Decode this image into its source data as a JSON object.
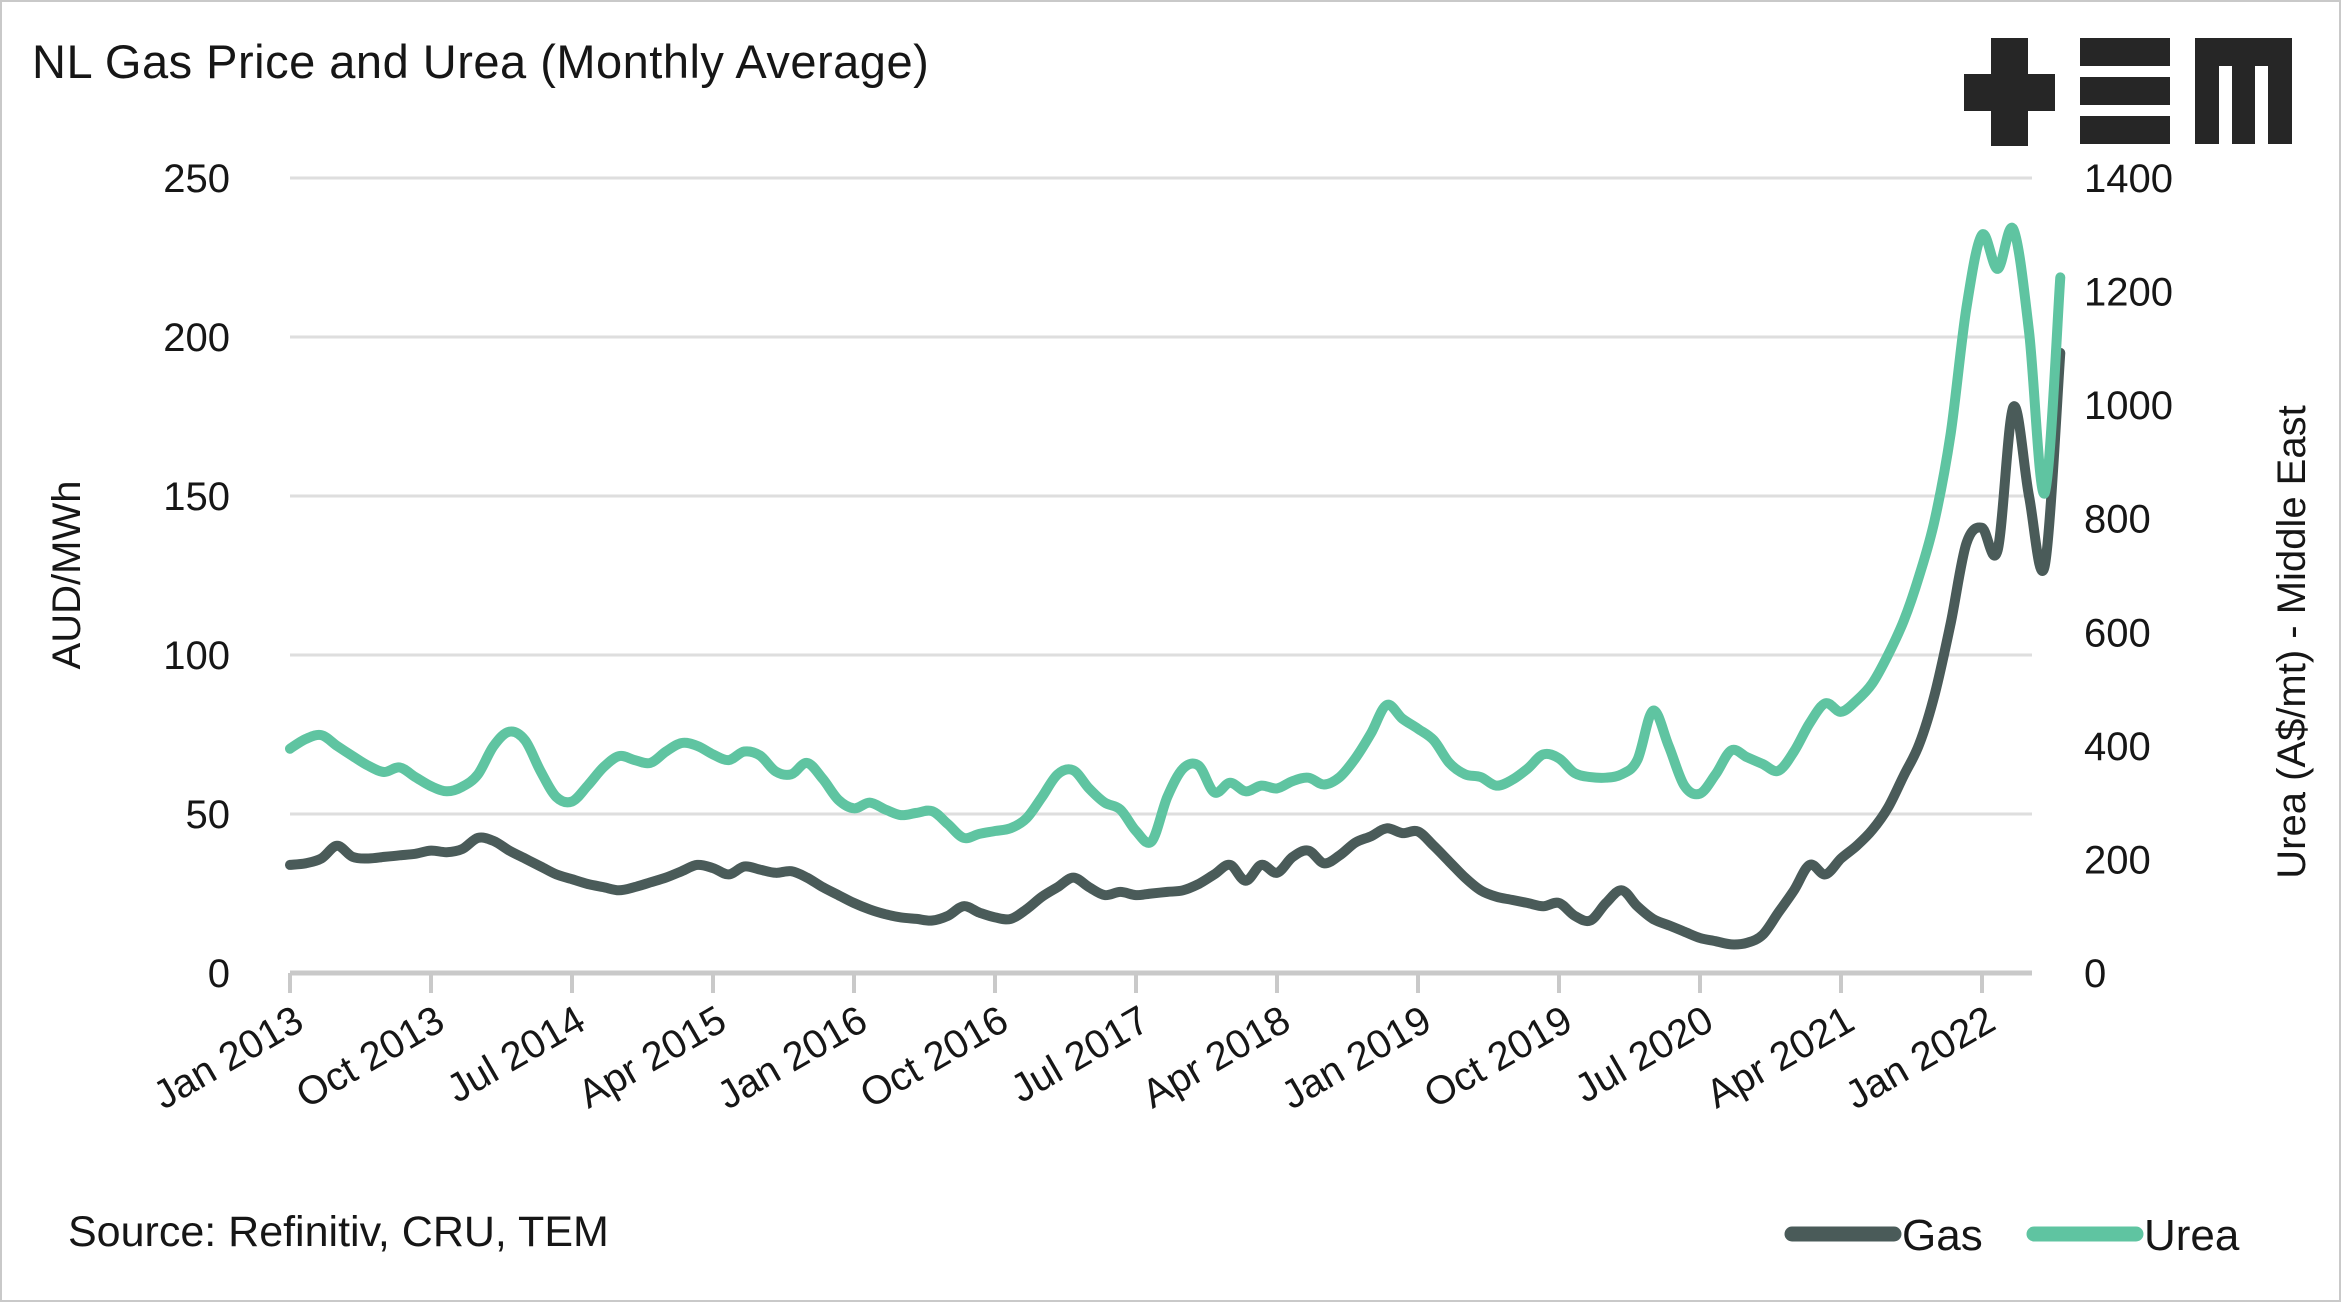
{
  "title": "NL Gas Price and Urea (Monthly Average)",
  "logo": {
    "text": "TEM"
  },
  "source": "Source: Refinitiv, CRU, TEM",
  "left_axis": {
    "title": "AUD/MWh",
    "ticks": [
      250,
      200,
      150,
      100,
      50,
      0
    ]
  },
  "right_axis": {
    "title": "Urea (A$/mt) - Middle East",
    "ticks": [
      1400,
      1200,
      1000,
      800,
      600,
      400,
      200,
      0
    ]
  },
  "x_axis": {
    "tick_labels": [
      "Jan 2013",
      "Oct 2013",
      "Jul 2014",
      "Apr 2015",
      "Jan 2016",
      "Oct 2016",
      "Jul 2017",
      "Apr 2018",
      "Jan 2019",
      "Oct 2019",
      "Jul 2020",
      "Apr 2021",
      "Jan 2022"
    ],
    "months_per_tick": 9
  },
  "legend": {
    "gas_label": "Gas",
    "urea_label": "Urea"
  },
  "colors": {
    "gas": "#4a5b59",
    "urea": "#5fc4a1",
    "grid": "#dedede",
    "axis": "#c9c9c9",
    "text": "#161616",
    "logo": "#262626"
  },
  "chart_data": {
    "type": "line",
    "x_start": "Jan 2013",
    "x_end": "Jun 2022",
    "frequency": "monthly",
    "left_ylabel": "AUD/MWh",
    "right_ylabel": "Urea (A$/mt) - Middle East",
    "left_ylim": [
      0,
      250
    ],
    "right_ylim": [
      0,
      1400
    ],
    "grid": true,
    "legend_position": "bottom-right",
    "series": [
      {
        "name": "Gas",
        "axis": "left",
        "unit": "AUD/MWh",
        "values": [
          34,
          34.5,
          36,
          40,
          36.5,
          36,
          36.5,
          37,
          37.5,
          38.5,
          38,
          39,
          42.5,
          41.5,
          38.5,
          36,
          33.5,
          31,
          29.5,
          28,
          27,
          26,
          27,
          28.5,
          30,
          32,
          34,
          33,
          31,
          33.5,
          32.5,
          31.5,
          32,
          30,
          27,
          24.5,
          22,
          20,
          18.5,
          17.5,
          17,
          16.5,
          18,
          21,
          19,
          17.5,
          17,
          20,
          24,
          27,
          30,
          27,
          24.5,
          25.5,
          24.5,
          25,
          25.5,
          26,
          28,
          31,
          34,
          29,
          34,
          31.5,
          36.5,
          38.5,
          34.5,
          37,
          41,
          43,
          45.5,
          44,
          44.5,
          40,
          35,
          30,
          26,
          24,
          23,
          22,
          21,
          22,
          18,
          16.5,
          22,
          26,
          21,
          17,
          15,
          13,
          11,
          10,
          9,
          9.5,
          12,
          19,
          26,
          34,
          31,
          36,
          40,
          45,
          52,
          62,
          72,
          88,
          110,
          135,
          140,
          133,
          178,
          150,
          128,
          195
        ]
      },
      {
        "name": "Urea",
        "axis": "right",
        "unit": "A$/mt",
        "values": [
          395,
          412,
          419,
          400,
          382,
          365,
          354,
          362,
          345,
          329,
          320,
          328,
          350,
          400,
          425,
          410,
          355,
          310,
          302,
          330,
          362,
          382,
          375,
          370,
          390,
          405,
          400,
          385,
          375,
          390,
          383,
          355,
          350,
          370,
          342,
          305,
          290,
          300,
          288,
          278,
          282,
          285,
          262,
          238,
          245,
          250,
          255,
          272,
          310,
          350,
          357,
          325,
          300,
          288,
          250,
          232,
          310,
          360,
          365,
          318,
          335,
          320,
          330,
          325,
          338,
          344,
          332,
          345,
          378,
          422,
          472,
          448,
          430,
          410,
          370,
          350,
          345,
          330,
          340,
          360,
          385,
          378,
          352,
          345,
          344,
          350,
          375,
          462,
          400,
          330,
          316,
          350,
          392,
          380,
          368,
          356,
          390,
          440,
          475,
          460,
          480,
          510,
          560,
          620,
          700,
          800,
          950,
          1170,
          1300,
          1240,
          1310,
          1130,
          845,
          1225
        ]
      }
    ]
  }
}
